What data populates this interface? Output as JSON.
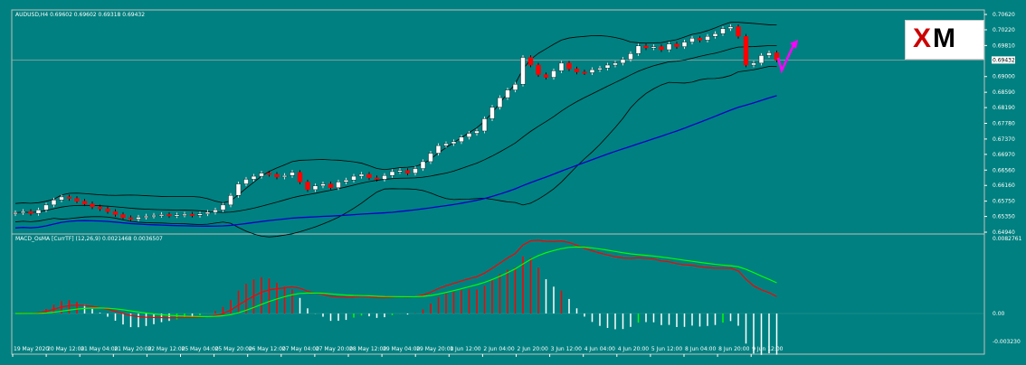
{
  "header": {
    "symbol_info": "AUDUSD,H4  0.69602 0.69602 0.69318 0.69432"
  },
  "macd": {
    "label": "MACD_OsMA [CurrTF] (12,26,9) 0.0021468 0.0036507"
  },
  "logo": {
    "text": "XM"
  },
  "price_axis": [
    "0.70620",
    "0.70220",
    "0.69810",
    "0.69000",
    "0.68590",
    "0.68190",
    "0.67780",
    "0.67370",
    "0.66970",
    "0.66560",
    "0.66160",
    "0.65750",
    "0.65350",
    "0.64940"
  ],
  "current_price": "0.69432",
  "macd_axis": {
    "top": "0.0082761",
    "zero": "0.00",
    "bottom": "-0.003230"
  },
  "time_axis": [
    "19 May 2020",
    "20 May 12:00",
    "21 May 04:00",
    "21 May 20:00",
    "22 May 12:00",
    "25 May 04:00",
    "25 May 20:00",
    "26 May 12:00",
    "27 May 04:00",
    "27 May 20:00",
    "28 May 12:00",
    "29 May 04:00",
    "29 May 20:00",
    "1 Jun 12:00",
    "2 Jun 04:00",
    "2 Jun 20:00",
    "3 Jun 12:00",
    "4 Jun 04:00",
    "4 Jun 20:00",
    "5 Jun 12:00",
    "8 Jun 04:00",
    "8 Jun 20:00",
    "9 Jun 12:00"
  ],
  "colors": {
    "bg": "#008080",
    "bull": "#ffffff",
    "bear": "#ff0000",
    "ma": "#0000cc",
    "macd": "#ff0000",
    "signal": "#00ff00",
    "arrow": "#ff00ff"
  },
  "chart_data": {
    "type": "candlestick",
    "title": "AUDUSD,H4",
    "ylim": [
      0.6494,
      0.7062
    ],
    "closes": [
      0.6545,
      0.6548,
      0.6543,
      0.6552,
      0.6565,
      0.6578,
      0.6586,
      0.6582,
      0.6575,
      0.6568,
      0.656,
      0.6555,
      0.6548,
      0.654,
      0.6532,
      0.6528,
      0.6533,
      0.6536,
      0.6538,
      0.654,
      0.6537,
      0.6539,
      0.6541,
      0.6538,
      0.6542,
      0.6546,
      0.6552,
      0.6565,
      0.659,
      0.662,
      0.6632,
      0.664,
      0.6648,
      0.6645,
      0.6638,
      0.6642,
      0.665,
      0.6625,
      0.6605,
      0.6615,
      0.662,
      0.661,
      0.6625,
      0.663,
      0.664,
      0.6645,
      0.6636,
      0.6632,
      0.6642,
      0.6652,
      0.6655,
      0.6648,
      0.666,
      0.6678,
      0.67,
      0.672,
      0.6725,
      0.673,
      0.6742,
      0.6752,
      0.6758,
      0.679,
      0.682,
      0.6845,
      0.6865,
      0.688,
      0.695,
      0.693,
      0.6905,
      0.6898,
      0.6915,
      0.6935,
      0.692,
      0.6912,
      0.691,
      0.6918,
      0.6922,
      0.693,
      0.6935,
      0.6945,
      0.696,
      0.698,
      0.6975,
      0.6978,
      0.697,
      0.6985,
      0.6978,
      0.699,
      0.7,
      0.6995,
      0.7005,
      0.7012,
      0.7025,
      0.703,
      0.7005,
      0.693,
      0.6935,
      0.6955,
      0.6962,
      0.6943
    ]
  }
}
